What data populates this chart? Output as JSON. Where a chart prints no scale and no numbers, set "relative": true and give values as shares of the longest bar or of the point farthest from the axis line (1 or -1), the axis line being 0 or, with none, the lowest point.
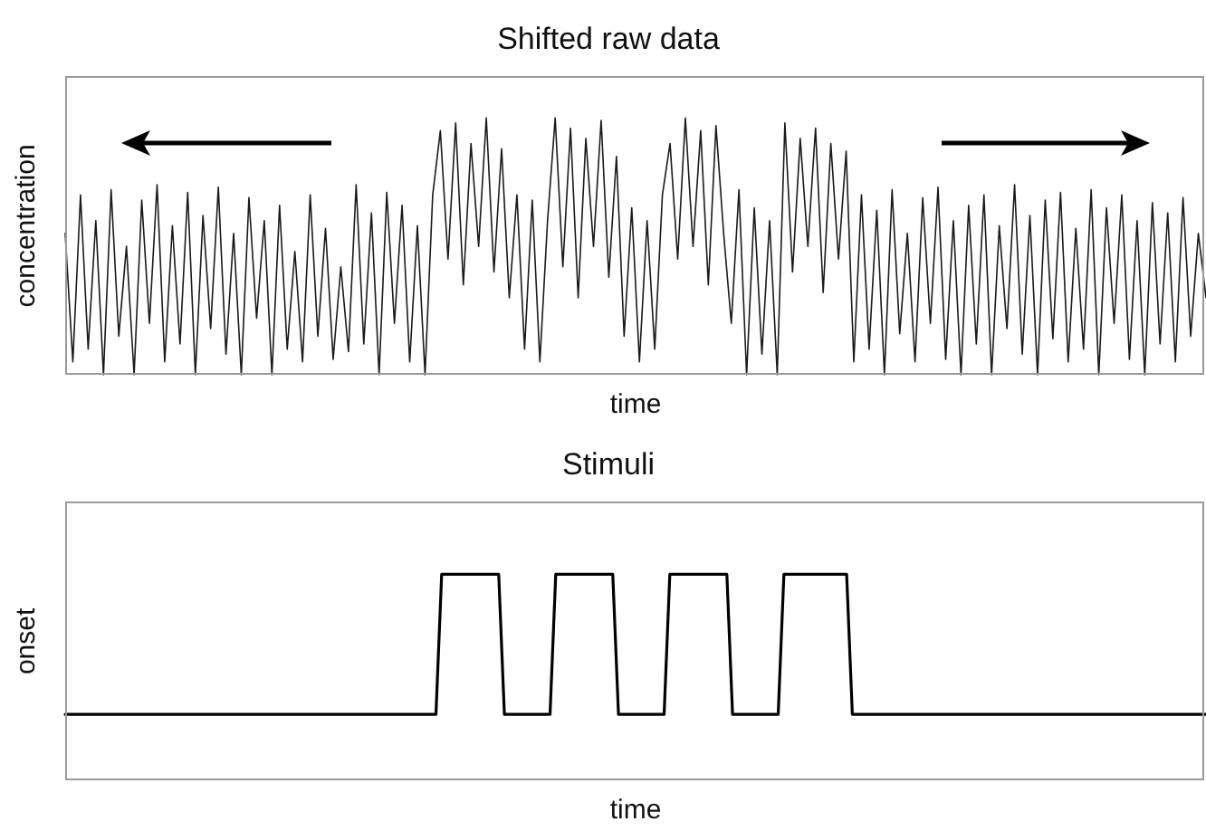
{
  "chart_data": [
    {
      "type": "line",
      "title": "Shifted raw data",
      "xlabel": "time",
      "ylabel": "concentration",
      "relative": true,
      "tick_labels": false,
      "legend": false,
      "marker": "none",
      "categories": [
        null,
        null,
        null,
        null,
        null,
        null,
        null,
        null,
        null,
        null,
        null,
        null,
        null,
        null,
        null,
        null,
        null,
        null,
        null,
        null,
        null,
        null,
        null,
        null,
        null,
        null,
        null,
        null,
        null,
        null,
        null,
        null,
        null,
        null,
        null,
        null,
        null,
        null,
        null,
        null,
        null,
        null,
        null,
        null,
        null,
        null,
        null,
        null,
        null,
        null,
        null,
        null,
        null,
        null,
        null,
        null,
        null,
        null,
        null,
        null,
        null,
        null,
        null,
        null,
        null,
        null,
        null,
        null,
        null,
        null,
        null,
        null,
        null,
        null,
        null,
        null,
        null,
        null,
        null,
        null,
        null,
        null,
        null,
        null,
        null,
        null,
        null,
        null,
        null,
        null,
        null,
        null,
        null,
        null,
        null,
        null,
        null,
        null,
        null,
        null,
        null,
        null,
        null,
        null,
        null,
        null,
        null,
        null,
        null,
        null,
        null,
        null,
        null,
        null,
        null,
        null,
        null,
        null,
        null,
        null,
        null,
        null,
        null,
        null,
        null,
        null,
        null,
        null,
        null,
        null,
        null,
        null,
        null,
        null,
        null,
        null,
        null,
        null,
        null,
        null,
        null,
        null,
        null,
        null,
        null,
        null,
        null,
        null,
        null,
        null
      ],
      "series": [
        {
          "color": "#1a1a1a",
          "values": [
            0.55,
            0.05,
            0.7,
            0.1,
            0.6,
            0.0,
            0.72,
            0.15,
            0.5,
            0.0,
            0.68,
            0.2,
            0.74,
            0.05,
            0.58,
            0.12,
            0.71,
            0.0,
            0.62,
            0.18,
            0.73,
            0.08,
            0.55,
            0.0,
            0.69,
            0.22,
            0.6,
            0.0,
            0.66,
            0.1,
            0.48,
            0.05,
            0.7,
            0.15,
            0.57,
            0.06,
            0.42,
            0.09,
            0.74,
            0.12,
            0.63,
            0.0,
            0.71,
            0.2,
            0.66,
            0.05,
            0.58,
            0.0,
            0.7,
            0.95,
            0.45,
            0.98,
            0.35,
            0.9,
            0.5,
            1.0,
            0.4,
            0.88,
            0.3,
            0.7,
            0.1,
            0.68,
            0.05,
            0.6,
            1.0,
            0.42,
            0.96,
            0.3,
            0.92,
            0.5,
            0.99,
            0.38,
            0.85,
            0.15,
            0.65,
            0.05,
            0.6,
            0.1,
            0.7,
            0.9,
            0.45,
            1.0,
            0.5,
            0.95,
            0.35,
            0.97,
            0.55,
            0.2,
            0.72,
            0.0,
            0.65,
            0.08,
            0.6,
            0.0,
            0.98,
            0.4,
            0.92,
            0.5,
            0.96,
            0.32,
            0.9,
            0.45,
            0.87,
            0.05,
            0.7,
            0.1,
            0.64,
            0.0,
            0.72,
            0.16,
            0.55,
            0.05,
            0.69,
            0.2,
            0.73,
            0.06,
            0.6,
            0.0,
            0.66,
            0.12,
            0.7,
            0.0,
            0.58,
            0.18,
            0.74,
            0.08,
            0.62,
            0.0,
            0.68,
            0.14,
            0.71,
            0.05,
            0.57,
            0.1,
            0.72,
            0.0,
            0.65,
            0.2,
            0.7,
            0.06,
            0.6,
            0.0,
            0.67,
            0.12,
            0.63,
            0.05,
            0.69,
            0.15,
            0.55,
            0.3
          ]
        }
      ]
    },
    {
      "type": "line",
      "title": "Stimuli",
      "xlabel": "time",
      "ylabel": "onset",
      "relative": true,
      "tick_labels": false,
      "legend": false,
      "marker": "none",
      "categories": [
        null,
        null,
        null,
        null,
        null,
        null,
        null,
        null,
        null,
        null,
        null,
        null,
        null,
        null,
        null,
        null,
        null,
        null,
        null,
        null,
        null,
        null,
        null,
        null,
        null,
        null,
        null,
        null,
        null,
        null,
        null,
        null,
        null,
        null,
        null,
        null,
        null,
        null,
        null,
        null,
        null,
        null,
        null,
        null,
        null,
        null,
        null,
        null,
        null,
        null,
        null,
        null,
        null,
        null,
        null,
        null,
        null,
        null,
        null,
        null,
        null,
        null,
        null,
        null,
        null,
        null,
        null,
        null,
        null,
        null,
        null,
        null,
        null,
        null,
        null,
        null,
        null,
        null,
        null,
        null,
        null,
        null,
        null,
        null,
        null,
        null,
        null,
        null,
        null,
        null,
        null,
        null,
        null,
        null,
        null,
        null,
        null,
        null,
        null,
        null,
        null,
        null,
        null,
        null,
        null,
        null,
        null,
        null,
        null,
        null,
        null,
        null,
        null,
        null,
        null,
        null,
        null,
        null,
        null,
        null,
        null,
        null,
        null,
        null,
        null,
        null,
        null,
        null,
        null,
        null,
        null,
        null,
        null,
        null,
        null,
        null,
        null,
        null,
        null,
        null,
        null,
        null,
        null,
        null,
        null,
        null,
        null,
        null,
        null,
        null,
        null,
        null,
        null,
        null,
        null,
        null,
        null,
        null,
        null,
        null,
        null,
        null,
        null,
        null,
        null,
        null,
        null,
        null,
        null,
        null,
        null,
        null,
        null,
        null,
        null,
        null,
        null,
        null,
        null,
        null,
        null,
        null,
        null,
        null,
        null,
        null,
        null,
        null,
        null,
        null,
        null,
        null,
        null,
        null,
        null,
        null,
        null,
        null,
        null,
        null,
        null
      ],
      "series": [
        {
          "color": "#000000",
          "values": [
            0.32,
            0.32,
            0.32,
            0.32,
            0.32,
            0.32,
            0.32,
            0.32,
            0.32,
            0.32,
            0.32,
            0.32,
            0.32,
            0.32,
            0.32,
            0.32,
            0.32,
            0.32,
            0.32,
            0.32,
            0.32,
            0.32,
            0.32,
            0.32,
            0.32,
            0.32,
            0.32,
            0.32,
            0.32,
            0.32,
            0.32,
            0.32,
            0.32,
            0.32,
            0.32,
            0.32,
            0.32,
            0.32,
            0.32,
            0.32,
            0.32,
            0.32,
            0.32,
            0.32,
            0.32,
            0.32,
            0.32,
            0.32,
            0.32,
            0.32,
            0.32,
            0.32,
            0.32,
            0.32,
            0.32,
            0.32,
            0.32,
            0.32,
            0.32,
            0.32,
            0.32,
            0.32,
            0.32,
            0.32,
            0.32,
            0.32,
            1,
            1,
            1,
            1,
            1,
            1,
            1,
            1,
            1,
            1,
            1,
            0.32,
            0.32,
            0.32,
            0.32,
            0.32,
            0.32,
            0.32,
            0.32,
            0.32,
            1,
            1,
            1,
            1,
            1,
            1,
            1,
            1,
            1,
            1,
            1,
            0.32,
            0.32,
            0.32,
            0.32,
            0.32,
            0.32,
            0.32,
            0.32,
            0.32,
            1,
            1,
            1,
            1,
            1,
            1,
            1,
            1,
            1,
            1,
            1,
            0.32,
            0.32,
            0.32,
            0.32,
            0.32,
            0.32,
            0.32,
            0.32,
            0.32,
            1,
            1,
            1,
            1,
            1,
            1,
            1,
            1,
            1,
            1,
            1,
            1,
            0.32,
            0.32,
            0.32,
            0.32,
            0.32,
            0.32,
            0.32,
            0.32,
            0.32,
            0.32,
            0.32,
            0.32,
            0.32,
            0.32,
            0.32,
            0.32,
            0.32,
            0.32,
            0.32,
            0.32,
            0.32,
            0.32,
            0.32,
            0.32,
            0.32,
            0.32,
            0.32,
            0.32,
            0.32,
            0.32,
            0.32,
            0.32,
            0.32,
            0.32,
            0.32,
            0.32,
            0.32,
            0.32,
            0.32,
            0.32,
            0.32,
            0.32,
            0.32,
            0.32,
            0.32,
            0.32,
            0.32,
            0.32,
            0.32,
            0.32,
            0.32,
            0.32,
            0.32,
            0.32,
            0.32,
            0.32,
            0.32,
            0.32,
            0.32,
            0.32,
            0.32,
            0.32,
            0.32
          ]
        }
      ]
    }
  ]
}
